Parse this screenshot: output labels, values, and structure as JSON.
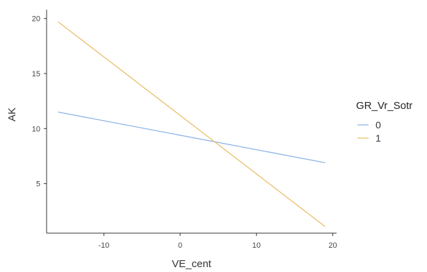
{
  "chart_data": {
    "type": "line",
    "title": "",
    "xlabel": "VE_cent",
    "ylabel": "AK",
    "xlim": [
      -17.5,
      20.5
    ],
    "ylim": [
      0.5,
      20.8
    ],
    "x_ticks": [
      -10,
      0,
      10,
      20
    ],
    "y_ticks": [
      5,
      10,
      15,
      20
    ],
    "grid": false,
    "legend": {
      "title": "GR_Vr_Sotr",
      "position": "right"
    },
    "series": [
      {
        "name": "0",
        "color": "#8db3e6",
        "x": [
          -16,
          19
        ],
        "y": [
          11.5,
          6.9
        ]
      },
      {
        "name": "1",
        "color": "#e8bf6a",
        "x": [
          -16,
          19
        ],
        "y": [
          19.7,
          1.1
        ]
      }
    ]
  }
}
